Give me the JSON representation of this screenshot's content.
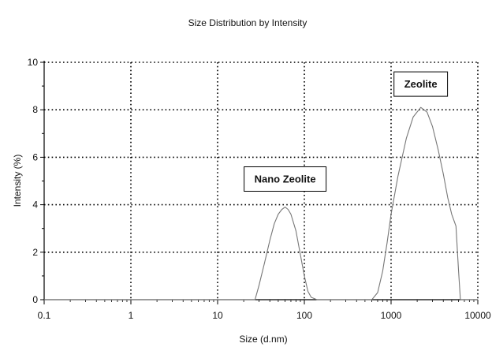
{
  "chart_data": {
    "type": "line",
    "title": "Size Distribution by Intensity",
    "xlabel": "Size (d.nm)",
    "ylabel": "Intensity (%)",
    "x_scale": "log",
    "xlim": [
      0.1,
      10000
    ],
    "ylim": [
      0,
      10
    ],
    "x_ticks": [
      {
        "value": 0.1,
        "label": "0.1"
      },
      {
        "value": 1,
        "label": "1"
      },
      {
        "value": 10,
        "label": "10"
      },
      {
        "value": 100,
        "label": "100"
      },
      {
        "value": 1000,
        "label": "1000"
      },
      {
        "value": 10000,
        "label": "10000"
      }
    ],
    "y_ticks": [
      {
        "value": 0,
        "label": "0"
      },
      {
        "value": 2,
        "label": "2"
      },
      {
        "value": 4,
        "label": "4"
      },
      {
        "value": 6,
        "label": "6"
      },
      {
        "value": 8,
        "label": "8"
      },
      {
        "value": 10,
        "label": "10"
      }
    ],
    "grid": true,
    "grid_style": "dotted",
    "line_color": "#777777",
    "series": [
      {
        "x": [
          0.1,
          1,
          10,
          20,
          27,
          30,
          35,
          40,
          45,
          50,
          55,
          60,
          65,
          70,
          80,
          90,
          100,
          110,
          120,
          140,
          200,
          400,
          600,
          700,
          800,
          900,
          1000,
          1200,
          1500,
          1800,
          2200,
          2600,
          3000,
          3500,
          4000,
          4500,
          5000,
          5600,
          6000,
          6300,
          7000,
          10000
        ],
        "y": [
          0,
          0,
          0,
          0,
          0,
          0.6,
          1.6,
          2.5,
          3.2,
          3.6,
          3.8,
          3.9,
          3.8,
          3.6,
          2.9,
          1.9,
          1.0,
          0.35,
          0.1,
          0,
          0,
          0,
          0,
          0.3,
          1.2,
          2.4,
          3.6,
          5.2,
          6.8,
          7.7,
          8.1,
          7.9,
          7.3,
          6.3,
          5.3,
          4.3,
          3.6,
          3.1,
          1.2,
          0,
          0,
          0
        ]
      }
    ],
    "annotations": [
      {
        "text": "Nano Zeolite",
        "x": 60,
        "y": 5.1
      },
      {
        "text": "Zeolite",
        "x": 2200,
        "y": 9.1
      }
    ]
  }
}
